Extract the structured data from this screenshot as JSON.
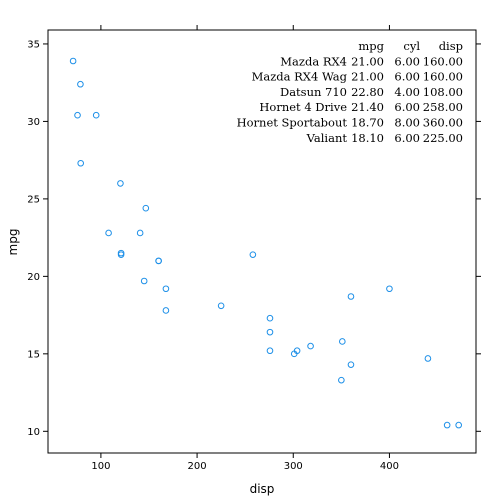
{
  "chart_data": {
    "type": "scatter",
    "xlabel": "disp",
    "ylabel": "mpg",
    "xlim": [
      45,
      490
    ],
    "ylim": [
      8.6,
      35.9
    ],
    "x_ticks": [
      100,
      200,
      300,
      400
    ],
    "y_ticks": [
      10,
      15,
      20,
      25,
      30,
      35
    ],
    "point_color": "#1E90E8",
    "points": [
      {
        "x": 71.1,
        "y": 33.9
      },
      {
        "x": 78.7,
        "y": 32.4
      },
      {
        "x": 75.7,
        "y": 30.4
      },
      {
        "x": 95.1,
        "y": 30.4
      },
      {
        "x": 79.0,
        "y": 27.3
      },
      {
        "x": 120.3,
        "y": 26.0
      },
      {
        "x": 146.7,
        "y": 24.4
      },
      {
        "x": 108.0,
        "y": 22.8
      },
      {
        "x": 140.8,
        "y": 22.8
      },
      {
        "x": 121.0,
        "y": 21.5
      },
      {
        "x": 121.0,
        "y": 21.4
      },
      {
        "x": 160.0,
        "y": 21.0
      },
      {
        "x": 160.0,
        "y": 21.0
      },
      {
        "x": 258.0,
        "y": 21.4
      },
      {
        "x": 145.0,
        "y": 19.7
      },
      {
        "x": 167.6,
        "y": 19.2
      },
      {
        "x": 167.6,
        "y": 17.8
      },
      {
        "x": 225.0,
        "y": 18.1
      },
      {
        "x": 360.0,
        "y": 18.7
      },
      {
        "x": 400.0,
        "y": 19.2
      },
      {
        "x": 275.8,
        "y": 17.3
      },
      {
        "x": 275.8,
        "y": 16.4
      },
      {
        "x": 275.8,
        "y": 15.2
      },
      {
        "x": 304.0,
        "y": 15.2
      },
      {
        "x": 301.0,
        "y": 15.0
      },
      {
        "x": 318.0,
        "y": 15.5
      },
      {
        "x": 351.0,
        "y": 15.8
      },
      {
        "x": 350.0,
        "y": 13.3
      },
      {
        "x": 360.0,
        "y": 14.3
      },
      {
        "x": 440.0,
        "y": 14.7
      },
      {
        "x": 460.0,
        "y": 10.4
      },
      {
        "x": 472.0,
        "y": 10.4
      }
    ],
    "annotation_table": {
      "columns": [
        "mpg",
        "cyl",
        "disp"
      ],
      "rows": [
        {
          "name": "Mazda RX4",
          "values": [
            "21.00",
            "6.00",
            "160.00"
          ]
        },
        {
          "name": "Mazda RX4 Wag",
          "values": [
            "21.00",
            "6.00",
            "160.00"
          ]
        },
        {
          "name": "Datsun 710",
          "values": [
            "22.80",
            "4.00",
            "108.00"
          ]
        },
        {
          "name": "Hornet 4 Drive",
          "values": [
            "21.40",
            "6.00",
            "258.00"
          ]
        },
        {
          "name": "Hornet Sportabout",
          "values": [
            "18.70",
            "8.00",
            "360.00"
          ]
        },
        {
          "name": "Valiant",
          "values": [
            "18.10",
            "6.00",
            "225.00"
          ]
        }
      ]
    }
  }
}
